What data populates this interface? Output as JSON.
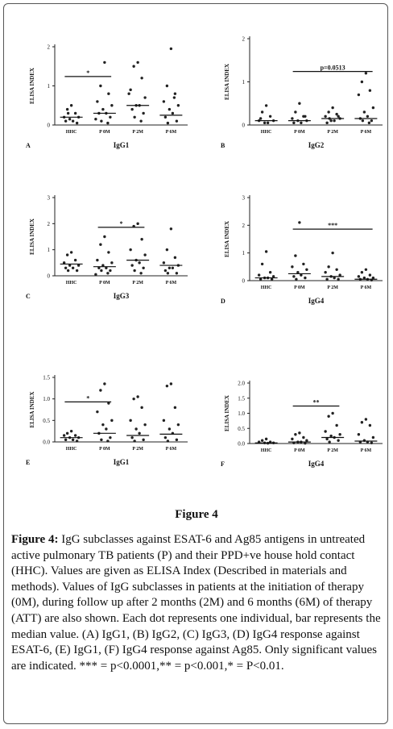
{
  "chart_data": [
    {
      "type": "strip",
      "panel": "A",
      "title": "IgG1",
      "ylabel": "ELISA INDEX",
      "categories": [
        "HHC",
        "P 0M",
        "P 2M",
        "P 6M"
      ],
      "points": [
        [
          0.5,
          0.4,
          0.3,
          0.2,
          0.2,
          0.15,
          0.1,
          0.1,
          0.05,
          0.3
        ],
        [
          1.6,
          1.0,
          0.8,
          0.6,
          0.5,
          0.4,
          0.3,
          0.3,
          0.2,
          0.1,
          0.05,
          0.15
        ],
        [
          1.6,
          1.5,
          1.2,
          0.9,
          0.7,
          0.5,
          0.5,
          0.4,
          0.3,
          0.2,
          0.1,
          0.8
        ],
        [
          1.95,
          1.0,
          0.8,
          0.6,
          0.5,
          0.4,
          0.3,
          0.2,
          0.1,
          0.05,
          0.7
        ]
      ],
      "medians": [
        0.2,
        0.3,
        0.5,
        0.25
      ],
      "ylim": [
        0,
        2
      ],
      "yticks": [
        0,
        1,
        2
      ],
      "significance": {
        "label": "*",
        "from": "HHC",
        "to": "P 0M"
      }
    },
    {
      "type": "strip",
      "panel": "B",
      "title": "IgG2",
      "ylabel": "ELISA INDEX",
      "categories": [
        "HHC",
        "P 0M",
        "P 2M",
        "P 6M"
      ],
      "points": [
        [
          0.45,
          0.3,
          0.2,
          0.1,
          0.1,
          0.05,
          0.05,
          0.15
        ],
        [
          0.5,
          0.3,
          0.2,
          0.15,
          0.1,
          0.1,
          0.05,
          0.05,
          0.2
        ],
        [
          0.4,
          0.3,
          0.25,
          0.2,
          0.15,
          0.1,
          0.1,
          0.05,
          0.2,
          0.15
        ],
        [
          1.2,
          1.0,
          0.8,
          0.7,
          0.4,
          0.3,
          0.2,
          0.15,
          0.1,
          0.1,
          0.05
        ]
      ],
      "medians": [
        0.1,
        0.1,
        0.15,
        0.15
      ],
      "ylim": [
        0,
        2
      ],
      "yticks": [
        0,
        1,
        2
      ],
      "significance": {
        "label": "p=0.0513",
        "from": "P 0M",
        "to": "P 6M"
      }
    },
    {
      "type": "strip",
      "panel": "C",
      "title": "IgG3",
      "ylabel": "ELISA INDEX",
      "categories": [
        "HHC",
        "P 0M",
        "P 2M",
        "P 6M"
      ],
      "points": [
        [
          0.9,
          0.8,
          0.6,
          0.5,
          0.4,
          0.4,
          0.3,
          0.3,
          0.2,
          0.2
        ],
        [
          1.5,
          1.2,
          0.9,
          0.6,
          0.5,
          0.4,
          0.3,
          0.3,
          0.2,
          0.2,
          0.1,
          0.05
        ],
        [
          2.0,
          1.9,
          1.4,
          1.0,
          0.8,
          0.6,
          0.5,
          0.4,
          0.3,
          0.2,
          0.1
        ],
        [
          1.8,
          1.0,
          0.7,
          0.5,
          0.4,
          0.3,
          0.3,
          0.2,
          0.1,
          0.1
        ]
      ],
      "medians": [
        0.45,
        0.35,
        0.6,
        0.4
      ],
      "ylim": [
        0,
        3
      ],
      "yticks": [
        0,
        1,
        2,
        3
      ],
      "significance": {
        "label": "*",
        "from": "P 0M",
        "to": "P 2M"
      }
    },
    {
      "type": "strip",
      "panel": "D",
      "title": "IgG4",
      "ylabel": "ELISA INDEX",
      "categories": [
        "HHC",
        "P 0M",
        "P 2M",
        "P 6M"
      ],
      "points": [
        [
          1.05,
          0.6,
          0.3,
          0.2,
          0.15,
          0.1,
          0.1,
          0.05,
          0.05
        ],
        [
          2.1,
          0.9,
          0.6,
          0.5,
          0.4,
          0.3,
          0.2,
          0.15,
          0.1,
          0.05
        ],
        [
          1.0,
          0.5,
          0.4,
          0.3,
          0.2,
          0.15,
          0.1,
          0.05,
          0.05
        ],
        [
          0.4,
          0.3,
          0.2,
          0.15,
          0.1,
          0.1,
          0.05,
          0.05,
          0.02
        ]
      ],
      "medians": [
        0.1,
        0.25,
        0.15,
        0.05
      ],
      "ylim": [
        0,
        3
      ],
      "yticks": [
        0,
        1,
        2,
        3
      ],
      "significance": {
        "label": "***",
        "from": "P 0M",
        "to": "P 6M"
      }
    },
    {
      "type": "strip",
      "panel": "E",
      "title": "IgG1",
      "ylabel": "ELISA INDEX",
      "categories": [
        "HHC",
        "P 0M",
        "P 2M",
        "P 6M"
      ],
      "points": [
        [
          0.25,
          0.2,
          0.15,
          0.15,
          0.1,
          0.1,
          0.05,
          0.05,
          0.02
        ],
        [
          1.35,
          1.2,
          0.9,
          0.7,
          0.5,
          0.4,
          0.3,
          0.2,
          0.1,
          0.05,
          0.02
        ],
        [
          1.05,
          1.0,
          0.8,
          0.5,
          0.4,
          0.3,
          0.2,
          0.1,
          0.05,
          0.02
        ],
        [
          1.35,
          1.3,
          0.8,
          0.5,
          0.4,
          0.3,
          0.2,
          0.1,
          0.05,
          0.02
        ]
      ],
      "medians": [
        0.1,
        0.2,
        0.15,
        0.18
      ],
      "ylim": [
        0,
        1.5
      ],
      "yticks": [
        {
          "value": 0,
          "label": "0.0"
        },
        {
          "value": 0.5,
          "label": "0.5"
        },
        {
          "value": 1,
          "label": "1.0"
        },
        {
          "value": 1.5,
          "label": "1.5"
        }
      ],
      "significance": {
        "label": "*",
        "from": "HHC",
        "to": "P 0M"
      }
    },
    {
      "type": "strip",
      "panel": "F",
      "title": "IgG4",
      "ylabel": "ELISA INDEX",
      "categories": [
        "HHC",
        "P 0M",
        "P 2M",
        "P 6M"
      ],
      "points": [
        [
          0.15,
          0.1,
          0.05,
          0.05,
          0.02,
          0.02,
          0.01
        ],
        [
          0.35,
          0.3,
          0.2,
          0.15,
          0.1,
          0.05,
          0.05,
          0.02,
          0.01
        ],
        [
          1.0,
          0.9,
          0.6,
          0.4,
          0.3,
          0.25,
          0.2,
          0.15,
          0.1,
          0.05
        ],
        [
          0.8,
          0.7,
          0.6,
          0.3,
          0.2,
          0.1,
          0.05,
          0.05,
          0.02
        ]
      ],
      "medians": [
        0.02,
        0.05,
        0.2,
        0.08
      ],
      "ylim": [
        0,
        2
      ],
      "yticks": [
        {
          "value": 0,
          "label": "0.0"
        },
        {
          "value": 0.5,
          "label": "0.5"
        },
        {
          "value": 1,
          "label": "1.0"
        },
        {
          "value": 1.5,
          "label": "1.5"
        },
        {
          "value": 2,
          "label": "2.0"
        }
      ],
      "significance": {
        "label": "**",
        "from": "P 0M",
        "to": "P 2M"
      }
    }
  ],
  "figure_label": "Figure 4",
  "caption": {
    "label": "Figure 4:",
    "text": "IgG subclasses against ESAT-6 and Ag85 antigens in untreated active pulmonary TB patients (P) and their PPD+ve house hold contact (HHC). Values are given as ELISA Index (Described in materials and methods). Values of IgG subclasses in patients at the initiation of therapy (0M), during follow up after 2 months (2M) and 6 months (6M) of therapy (ATT) are also shown. Each dot represents one individual, bar represents the median value. (A) IgG1, (B) IgG2, (C) IgG3, (D) IgG4 response against ESAT-6, (E) IgG1, (F) IgG4 response against Ag85. Only significant values are indicated. *** = p<0.0001,** = p<0.001,* = P<0.01."
  }
}
